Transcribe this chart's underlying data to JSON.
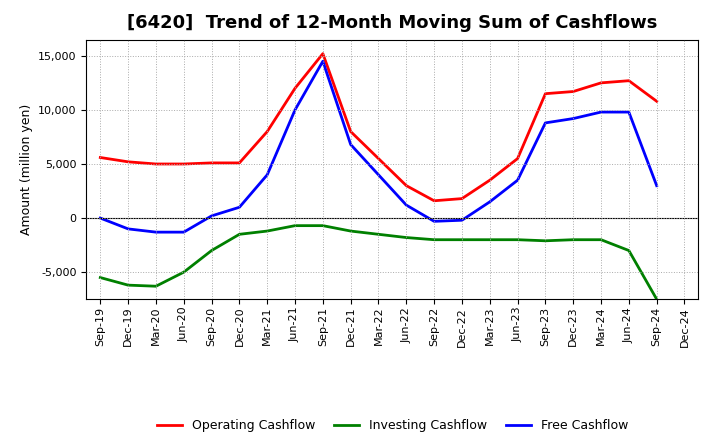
{
  "title": "[6420]  Trend of 12-Month Moving Sum of Cashflows",
  "ylabel": "Amount (million yen)",
  "background_color": "#ffffff",
  "grid_color": "#aaaaaa",
  "x_labels": [
    "Sep-19",
    "Dec-19",
    "Mar-20",
    "Jun-20",
    "Sep-20",
    "Dec-20",
    "Mar-21",
    "Jun-21",
    "Sep-21",
    "Dec-21",
    "Mar-22",
    "Jun-22",
    "Sep-22",
    "Dec-22",
    "Mar-23",
    "Jun-23",
    "Sep-23",
    "Dec-23",
    "Mar-24",
    "Jun-24",
    "Sep-24",
    "Dec-24"
  ],
  "operating": [
    5600,
    5200,
    5000,
    5000,
    5100,
    5100,
    8000,
    12000,
    15200,
    8000,
    5500,
    3000,
    1600,
    1800,
    3500,
    5500,
    11500,
    11700,
    12500,
    12700,
    10800,
    null
  ],
  "investing": [
    -5500,
    -6200,
    -6300,
    -5000,
    -3000,
    -1500,
    -1200,
    -700,
    -700,
    -1200,
    -1500,
    -1800,
    -2000,
    -2000,
    -2000,
    -2000,
    -2100,
    -2000,
    -2000,
    -3000,
    -7500,
    null
  ],
  "free": [
    0,
    -1000,
    -1300,
    -1300,
    200,
    1000,
    4000,
    10000,
    14500,
    6800,
    4000,
    1200,
    -300,
    -200,
    1500,
    3500,
    8800,
    9200,
    9800,
    9800,
    3000,
    null
  ],
  "ylim": [
    -7500,
    16500
  ],
  "yticks": [
    -5000,
    0,
    5000,
    10000,
    15000
  ],
  "line_colors": {
    "operating": "#ff0000",
    "investing": "#008000",
    "free": "#0000ff"
  },
  "line_width": 2.0,
  "title_fontsize": 13,
  "label_fontsize": 9,
  "tick_fontsize": 8,
  "legend_fontsize": 9
}
